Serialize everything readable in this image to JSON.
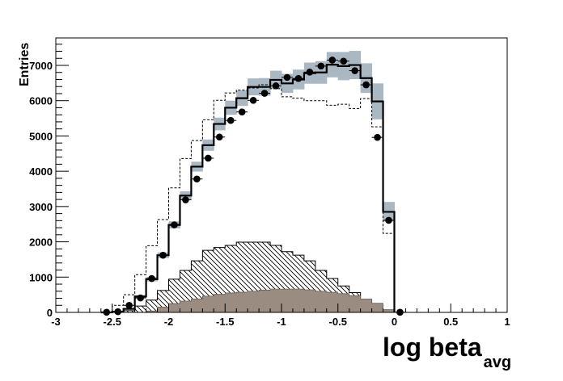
{
  "chart_data": {
    "type": "bar",
    "title": "",
    "xlabel": "log beta",
    "xlabel_subscript": "avg",
    "ylabel": "Entries",
    "xlim": [
      -3,
      1
    ],
    "ylim": [
      0,
      7800
    ],
    "x_ticks": [
      "-3",
      "-2.5",
      "-2",
      "-1.5",
      "-1",
      "-0.5",
      "0",
      "0.5",
      "1"
    ],
    "y_ticks": [
      "0",
      "1000",
      "2000",
      "3000",
      "4000",
      "5000",
      "6000",
      "7000"
    ],
    "grid": false,
    "bin_edges_start": -2.6,
    "bin_width": 0.1,
    "series": [
      {
        "style": "points",
        "color": "#000000",
        "x": [
          -2.55,
          -2.45,
          -2.35,
          -2.25,
          -2.15,
          -2.05,
          -1.95,
          -1.85,
          -1.75,
          -1.65,
          -1.55,
          -1.45,
          -1.35,
          -1.25,
          -1.15,
          -1.05,
          -0.95,
          -0.85,
          -0.75,
          -0.65,
          -0.55,
          -0.45,
          -0.35,
          -0.25,
          -0.15,
          -0.05,
          0.05
        ],
        "values": [
          5,
          20,
          200,
          410,
          960,
          1620,
          2480,
          3190,
          3780,
          4370,
          4970,
          5440,
          5680,
          6010,
          6210,
          6420,
          6660,
          6630,
          6810,
          6980,
          7150,
          7120,
          6850,
          6450,
          4960,
          2610,
          5
        ]
      },
      {
        "style": "solid-step",
        "color": "#000000",
        "band_color": "#aab8c4",
        "values": [
          0,
          20,
          100,
          450,
          940,
          1620,
          2480,
          3310,
          4130,
          4740,
          5340,
          5800,
          6070,
          6390,
          6390,
          6590,
          6490,
          6600,
          6780,
          6800,
          7020,
          6980,
          7010,
          6640,
          5980,
          2850
        ],
        "band_err": [
          0,
          0,
          20,
          40,
          60,
          80,
          100,
          120,
          140,
          160,
          180,
          200,
          220,
          240,
          250,
          260,
          270,
          280,
          300,
          320,
          360,
          400,
          400,
          420,
          510,
          280
        ]
      },
      {
        "style": "dashed-step",
        "color": "#000000",
        "values": [
          0,
          200,
          500,
          1070,
          1890,
          2630,
          3530,
          4360,
          4870,
          5460,
          6010,
          6220,
          6300,
          6360,
          6450,
          6340,
          6110,
          6070,
          6000,
          6000,
          5870,
          5900,
          5780,
          6060,
          5260,
          2240
        ]
      },
      {
        "style": "hatched-step",
        "color": "#000000",
        "values": [
          0,
          20,
          50,
          180,
          350,
          620,
          940,
          1190,
          1460,
          1760,
          1840,
          1900,
          1990,
          1990,
          1990,
          1900,
          1720,
          1620,
          1460,
          1190,
          960,
          750,
          560,
          340,
          200,
          40
        ]
      },
      {
        "style": "filled-step",
        "color": "#9a8c80",
        "values": [
          0,
          0,
          0,
          0,
          40,
          150,
          250,
          320,
          380,
          460,
          510,
          550,
          570,
          600,
          630,
          660,
          660,
          660,
          640,
          600,
          570,
          530,
          470,
          380,
          260,
          80
        ]
      }
    ]
  }
}
